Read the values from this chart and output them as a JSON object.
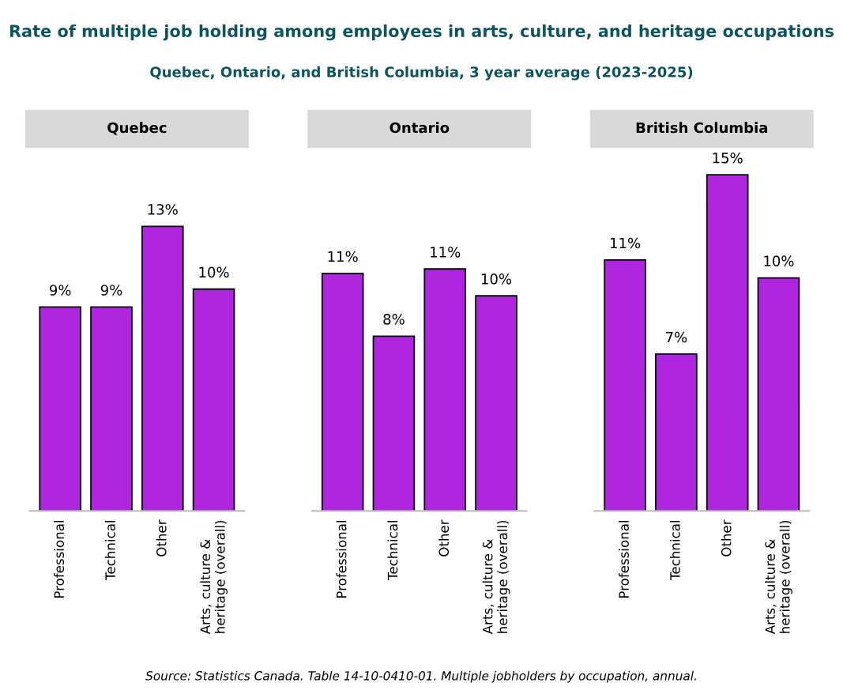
{
  "chart_data": [
    {
      "type": "other",
      "title": "Rate of multiple job holding among employees in arts, culture, and heritage occupations",
      "subtitle": "Quebec, Ontario, and British Columbia, 3 year average (2023-2025)",
      "annotations": [
        "Source: Statistics Canada. Table 14-10-0410-01. Multiple jobholders by occupation, annual."
      ]
    },
    {
      "type": "bar",
      "title": "Quebec",
      "categories": [
        "Professional",
        "Technical",
        "Other",
        "Arts, culture & heritage (overall)"
      ],
      "values": [
        9.1,
        9.1,
        12.7,
        9.9
      ],
      "value_labels": [
        "9%",
        "9%",
        "13%",
        "10%"
      ],
      "color": "#b026e0",
      "tick_labels": "x"
    },
    {
      "type": "bar",
      "title": "Ontario",
      "categories": [
        "Professional",
        "Technical",
        "Other",
        "Arts, culture & heritage (overall)"
      ],
      "values": [
        10.6,
        7.8,
        10.8,
        9.6
      ],
      "value_labels": [
        "11%",
        "8%",
        "11%",
        "10%"
      ],
      "color": "#b026e0",
      "tick_labels": "x"
    },
    {
      "type": "bar",
      "title": "British Columbia",
      "categories": [
        "Professional",
        "Technical",
        "Other",
        "Arts, culture & heritage (overall)"
      ],
      "values": [
        11.2,
        7.0,
        15.0,
        10.4
      ],
      "value_labels": [
        "11%",
        "7%",
        "15%",
        "10%"
      ],
      "color": "#b026e0",
      "tick_labels": "x"
    }
  ]
}
